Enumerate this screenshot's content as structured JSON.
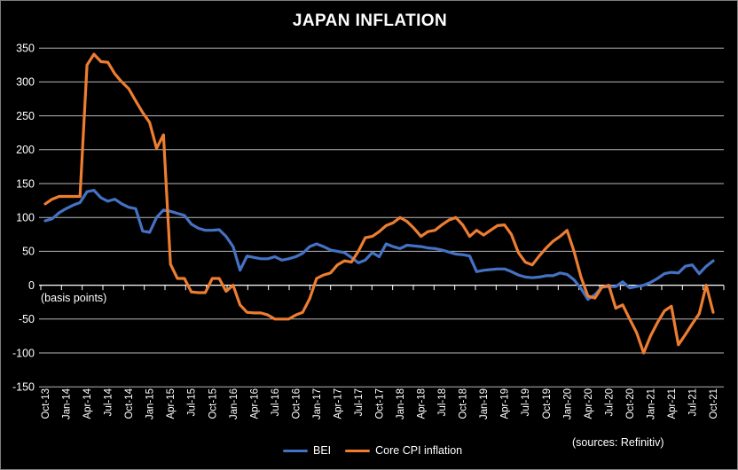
{
  "title": "JAPAN INFLATION",
  "axis_note": "(basis points)",
  "sources_note": "(sources: Refinitiv)",
  "colors": {
    "background": "#000000",
    "text": "#ffffff",
    "gridline": "#d9d9d9",
    "axis": "#ffffff",
    "bei": "#4472C4",
    "core_cpi": "#ED7D31"
  },
  "legend": [
    {
      "label": "BEI",
      "color": "#4472C4"
    },
    {
      "label": "Core CPI inflation",
      "color": "#ED7D31"
    }
  ],
  "chart_data": {
    "type": "line",
    "title": "JAPAN INFLATION",
    "ylabel": "(basis points)",
    "ylim": [
      -150,
      350
    ],
    "y_ticks": [
      350,
      300,
      250,
      200,
      150,
      100,
      50,
      0,
      -50,
      -100,
      -150
    ],
    "frequency": "monthly",
    "x_start": "Oct-13",
    "x_end": "Oct-21",
    "months_per_tick_label": 3,
    "x_tick_labels": [
      "Oct-13",
      "Jan-14",
      "Apr-14",
      "Jul-14",
      "Oct-14",
      "Jan-15",
      "Apr-15",
      "Jul-15",
      "Oct-15",
      "Jan-16",
      "Apr-16",
      "Jul-16",
      "Oct-16",
      "Jan-17",
      "Apr-17",
      "Jul-17",
      "Oct-17",
      "Jan-18",
      "Apr-18",
      "Jul-18",
      "Oct-18",
      "Jan-19",
      "Apr-19",
      "Jul-19",
      "Oct-19",
      "Jan-20",
      "Apr-20",
      "Jul-20",
      "Oct-20",
      "Jan-21",
      "Apr-21",
      "Jul-21",
      "Oct-21"
    ],
    "legend_position": "bottom",
    "grid": true,
    "series": [
      {
        "name": "BEI",
        "color": "#4472C4",
        "values": [
          95,
          98,
          107,
          113,
          118,
          122,
          138,
          140,
          129,
          124,
          127,
          120,
          115,
          113,
          80,
          78,
          100,
          111,
          109,
          106,
          103,
          90,
          84,
          81,
          81,
          82,
          72,
          57,
          22,
          43,
          41,
          39,
          39,
          42,
          37,
          39,
          42,
          47,
          57,
          61,
          57,
          52,
          50,
          48,
          41,
          33,
          37,
          48,
          42,
          61,
          57,
          54,
          59,
          58,
          57,
          55,
          54,
          52,
          49,
          46,
          45,
          43,
          20,
          22,
          23,
          24,
          24,
          20,
          15,
          12,
          11,
          12,
          14,
          14,
          18,
          16,
          8,
          -5,
          -21,
          -14,
          -3,
          -2,
          -2,
          5,
          -4,
          -2,
          0,
          4,
          10,
          17,
          19,
          18,
          28,
          30,
          17,
          28,
          36
        ]
      },
      {
        "name": "Core CPI inflation",
        "color": "#ED7D31",
        "values": [
          120,
          127,
          131,
          131,
          131,
          131,
          325,
          341,
          330,
          329,
          312,
          300,
          290,
          272,
          255,
          240,
          202,
          222,
          31,
          10,
          10,
          -10,
          -11,
          -11,
          10,
          10,
          -9,
          0,
          -29,
          -40,
          -41,
          -41,
          -44,
          -50,
          -50,
          -50,
          -44,
          -40,
          -20,
          10,
          15,
          18,
          30,
          36,
          34,
          50,
          70,
          72,
          79,
          88,
          92,
          100,
          94,
          84,
          72,
          79,
          81,
          89,
          96,
          100,
          89,
          72,
          81,
          74,
          81,
          88,
          89,
          75,
          48,
          34,
          30,
          43,
          55,
          65,
          72,
          81,
          50,
          12,
          -16,
          -19,
          -3,
          0,
          -34,
          -29,
          -50,
          -70,
          -100,
          -75,
          -55,
          -38,
          -31,
          -88,
          -73,
          -57,
          -42,
          0,
          -40
        ]
      }
    ]
  }
}
